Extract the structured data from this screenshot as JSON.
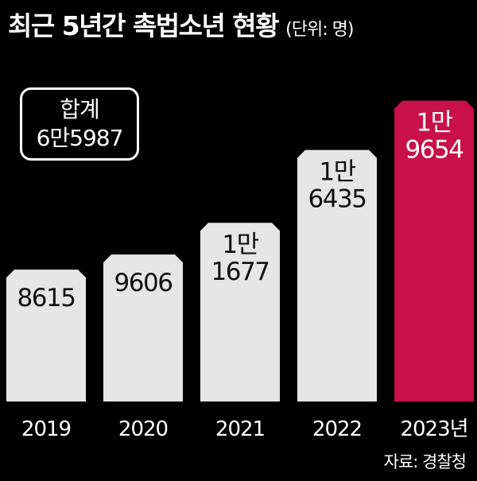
{
  "title": "최근 5년간 촉법소년 현황",
  "unit": "(단위: 명)",
  "total": {
    "label": "합계",
    "value": "6만5987"
  },
  "source": "자료: 경찰청",
  "colors": {
    "background": "#000000",
    "bar": "#e6e6e6",
    "highlight": "#c8104a",
    "text": "#ffffff"
  },
  "chart_data": {
    "type": "bar",
    "categories": [
      "2019",
      "2020",
      "2021",
      "2022",
      "2023년"
    ],
    "values": [
      8615,
      9606,
      11677,
      16435,
      19654
    ],
    "data_labels": [
      [
        "8615"
      ],
      [
        "9606"
      ],
      [
        "1만",
        "1677"
      ],
      [
        "1만",
        "6435"
      ],
      [
        "1만",
        "9654"
      ]
    ],
    "highlight_index": 4,
    "title": "최근 5년간 촉법소년 현황",
    "xlabel": "",
    "ylabel": "",
    "ylim": [
      0,
      20000
    ]
  }
}
